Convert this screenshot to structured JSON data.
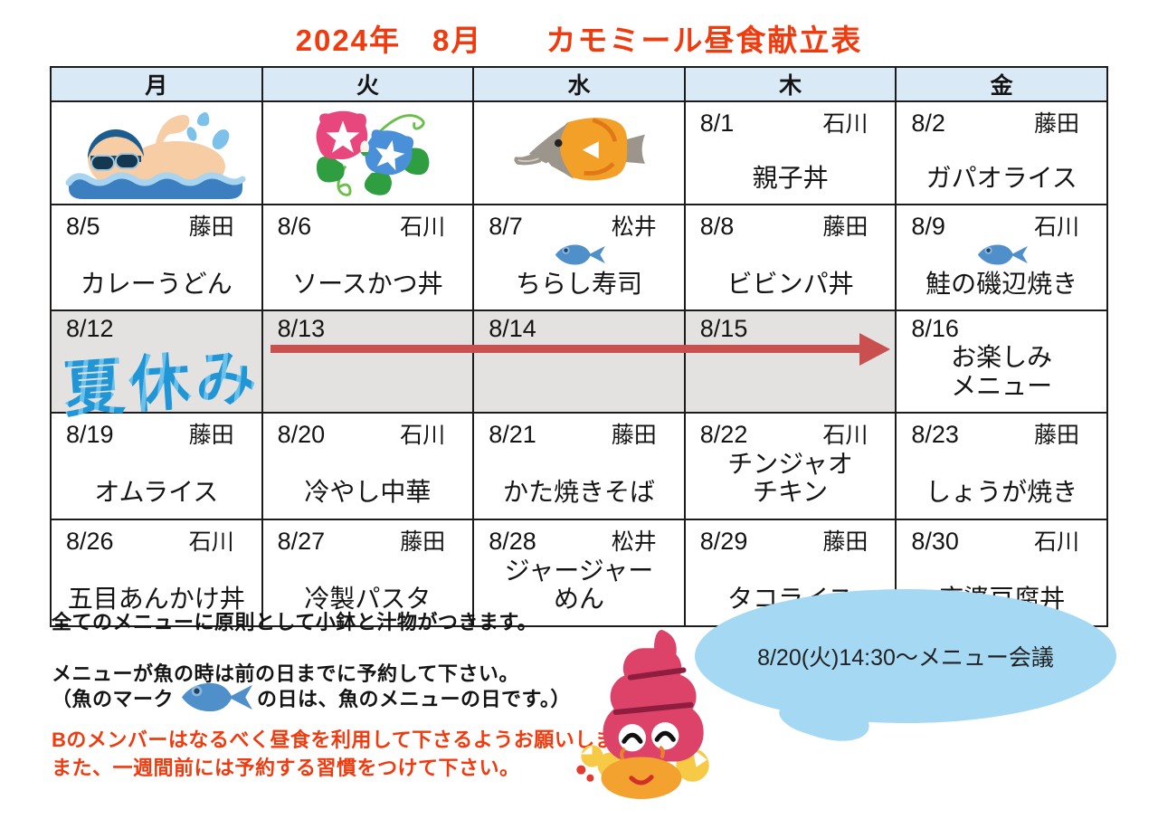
{
  "title": "2024年　8月　　カモミール昼食献立表",
  "colors": {
    "title_red": "#f13a0e",
    "header_blue": "#d9e9f5",
    "shaded_gray": "#e3e2e0",
    "arrow_red": "#c9504e",
    "vacation_blue": "#2196d6",
    "fish_blue": "#4f8fca",
    "bubble_blue": "#a5d8f3"
  },
  "table": {
    "headers": [
      "月",
      "火",
      "水",
      "木",
      "金"
    ],
    "rows": [
      {
        "cells": [
          {
            "image": "swimmer"
          },
          {
            "image": "morning_glory"
          },
          {
            "image": "longnose_fish"
          },
          {
            "date": "8/1",
            "staff": "石川",
            "menu": [
              "親子丼"
            ]
          },
          {
            "date": "8/2",
            "staff": "藤田",
            "menu": [
              "ガパオライス"
            ]
          }
        ]
      },
      {
        "cells": [
          {
            "date": "8/5",
            "staff": "藤田",
            "menu": [
              "カレーうどん"
            ]
          },
          {
            "date": "8/6",
            "staff": "石川",
            "menu": [
              "ソースかつ丼"
            ]
          },
          {
            "date": "8/7",
            "staff": "松井",
            "fish": true,
            "menu": [
              "ちらし寿司"
            ]
          },
          {
            "date": "8/8",
            "staff": "藤田",
            "menu": [
              "ビビンパ丼"
            ]
          },
          {
            "date": "8/9",
            "staff": "石川",
            "fish": true,
            "menu": [
              "鮭の磯辺焼き"
            ]
          }
        ]
      },
      {
        "cells": [
          {
            "date": "8/12",
            "shaded": true,
            "special": "夏休み"
          },
          {
            "date": "8/13",
            "shaded": true
          },
          {
            "date": "8/14",
            "shaded": true
          },
          {
            "date": "8/15",
            "shaded": true
          },
          {
            "date": "8/16",
            "menu": [
              "お楽しみ",
              "メニュー"
            ]
          }
        ]
      },
      {
        "cells": [
          {
            "date": "8/19",
            "staff": "藤田",
            "menu": [
              "オムライス"
            ]
          },
          {
            "date": "8/20",
            "staff": "石川",
            "menu": [
              "冷やし中華"
            ]
          },
          {
            "date": "8/21",
            "staff": "藤田",
            "menu": [
              "かた焼きそば"
            ]
          },
          {
            "date": "8/22",
            "staff": "石川",
            "menu": [
              "チンジャオ",
              "チキン"
            ]
          },
          {
            "date": "8/23",
            "staff": "藤田",
            "menu": [
              "しょうが焼き"
            ]
          }
        ]
      },
      {
        "cells": [
          {
            "date": "8/26",
            "staff": "石川",
            "menu": [
              "五目あんかけ丼"
            ]
          },
          {
            "date": "8/27",
            "staff": "藤田",
            "menu": [
              "冷製パスタ"
            ]
          },
          {
            "date": "8/28",
            "staff": "松井",
            "menu": [
              "ジャージャー",
              "めん"
            ]
          },
          {
            "date": "8/29",
            "staff": "藤田",
            "menu": [
              "タコライス"
            ]
          },
          {
            "date": "8/30",
            "staff": "石川",
            "menu": [
              "麻婆豆腐丼"
            ]
          }
        ]
      }
    ]
  },
  "notes": {
    "line1": "全てのメニューに原則として小鉢と汁物がつきます。",
    "line2": "メニューが魚の時は前の日までに予約して下さい。",
    "line3_before": "（魚のマーク",
    "line3_after": "の日は、魚のメニューの日です。）",
    "red1": "Bのメンバーはなるべく昼食を利用して下さるようお願いします。",
    "red2": "また、一週間前には予約する習慣をつけて下さい。"
  },
  "bubble": {
    "text": "8/20(火)14:30～メニュー会議"
  }
}
